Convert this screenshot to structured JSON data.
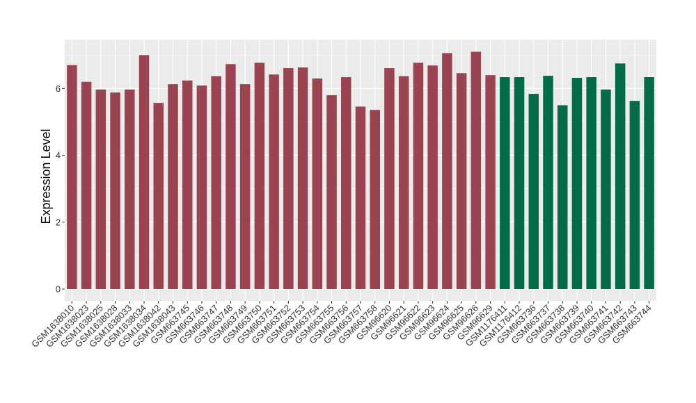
{
  "chart_data": {
    "type": "bar",
    "title": "",
    "xlabel": "",
    "ylabel": "Expression Level",
    "ylim": [
      0,
      7.3
    ],
    "yticks": [
      0,
      2,
      4,
      6
    ],
    "grid": true,
    "legend": "none",
    "colors": {
      "group1": "#9b4451",
      "group2": "#036b4a",
      "panel": "#ebebeb",
      "grid": "#ffffff"
    },
    "categories": [
      "GSM1638010",
      "GSM1638023",
      "GSM1638025",
      "GSM1638028",
      "GSM1638033",
      "GSM1638034",
      "GSM1638042",
      "GSM1638043",
      "GSM663745",
      "GSM663746",
      "GSM663747",
      "GSM663748",
      "GSM663749",
      "GSM663750",
      "GSM663751",
      "GSM663752",
      "GSM663753",
      "GSM663754",
      "GSM663755",
      "GSM663756",
      "GSM663757",
      "GSM663758",
      "GSM96620",
      "GSM96621",
      "GSM96622",
      "GSM96623",
      "GSM96624",
      "GSM96625",
      "GSM96626",
      "GSM96629",
      "GSM1176411",
      "GSM1176412",
      "GSM663736",
      "GSM663737",
      "GSM663738",
      "GSM663739",
      "GSM663740",
      "GSM663741",
      "GSM663742",
      "GSM663743",
      "GSM663744"
    ],
    "values": [
      6.7,
      6.2,
      5.97,
      5.88,
      5.97,
      7.0,
      5.57,
      6.13,
      6.24,
      6.09,
      6.37,
      6.73,
      6.13,
      6.77,
      6.42,
      6.61,
      6.63,
      6.3,
      5.8,
      6.34,
      5.46,
      5.36,
      6.61,
      6.37,
      6.77,
      6.69,
      7.06,
      6.46,
      7.1,
      6.4,
      6.34,
      6.34,
      5.84,
      6.38,
      5.5,
      6.32,
      6.34,
      5.97,
      6.75,
      5.63,
      6.34
    ],
    "groups": [
      1,
      1,
      1,
      1,
      1,
      1,
      1,
      1,
      1,
      1,
      1,
      1,
      1,
      1,
      1,
      1,
      1,
      1,
      1,
      1,
      1,
      1,
      1,
      1,
      1,
      1,
      1,
      1,
      1,
      1,
      2,
      2,
      2,
      2,
      2,
      2,
      2,
      2,
      2,
      2,
      2
    ]
  }
}
